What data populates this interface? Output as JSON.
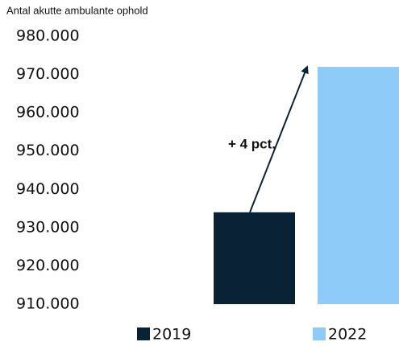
{
  "chart_data": {
    "type": "bar",
    "y_label": "Antal akutte ambulante ophold",
    "categories": [
      "2019",
      "2022"
    ],
    "values": [
      934000,
      972000
    ],
    "colors": [
      "#0a2236",
      "#8fcbf9"
    ],
    "annotation": "+ 4 pct.",
    "ylim": [
      910000,
      980000
    ],
    "yticks": [
      {
        "value": 910000,
        "label": "910.000"
      },
      {
        "value": 920000,
        "label": "920.000"
      },
      {
        "value": 930000,
        "label": "930.000"
      },
      {
        "value": 940000,
        "label": "940.000"
      },
      {
        "value": 950000,
        "label": "950.000"
      },
      {
        "value": 960000,
        "label": "960.000"
      },
      {
        "value": 970000,
        "label": "970.000"
      },
      {
        "value": 980000,
        "label": "980.000"
      }
    ],
    "grid": false
  }
}
